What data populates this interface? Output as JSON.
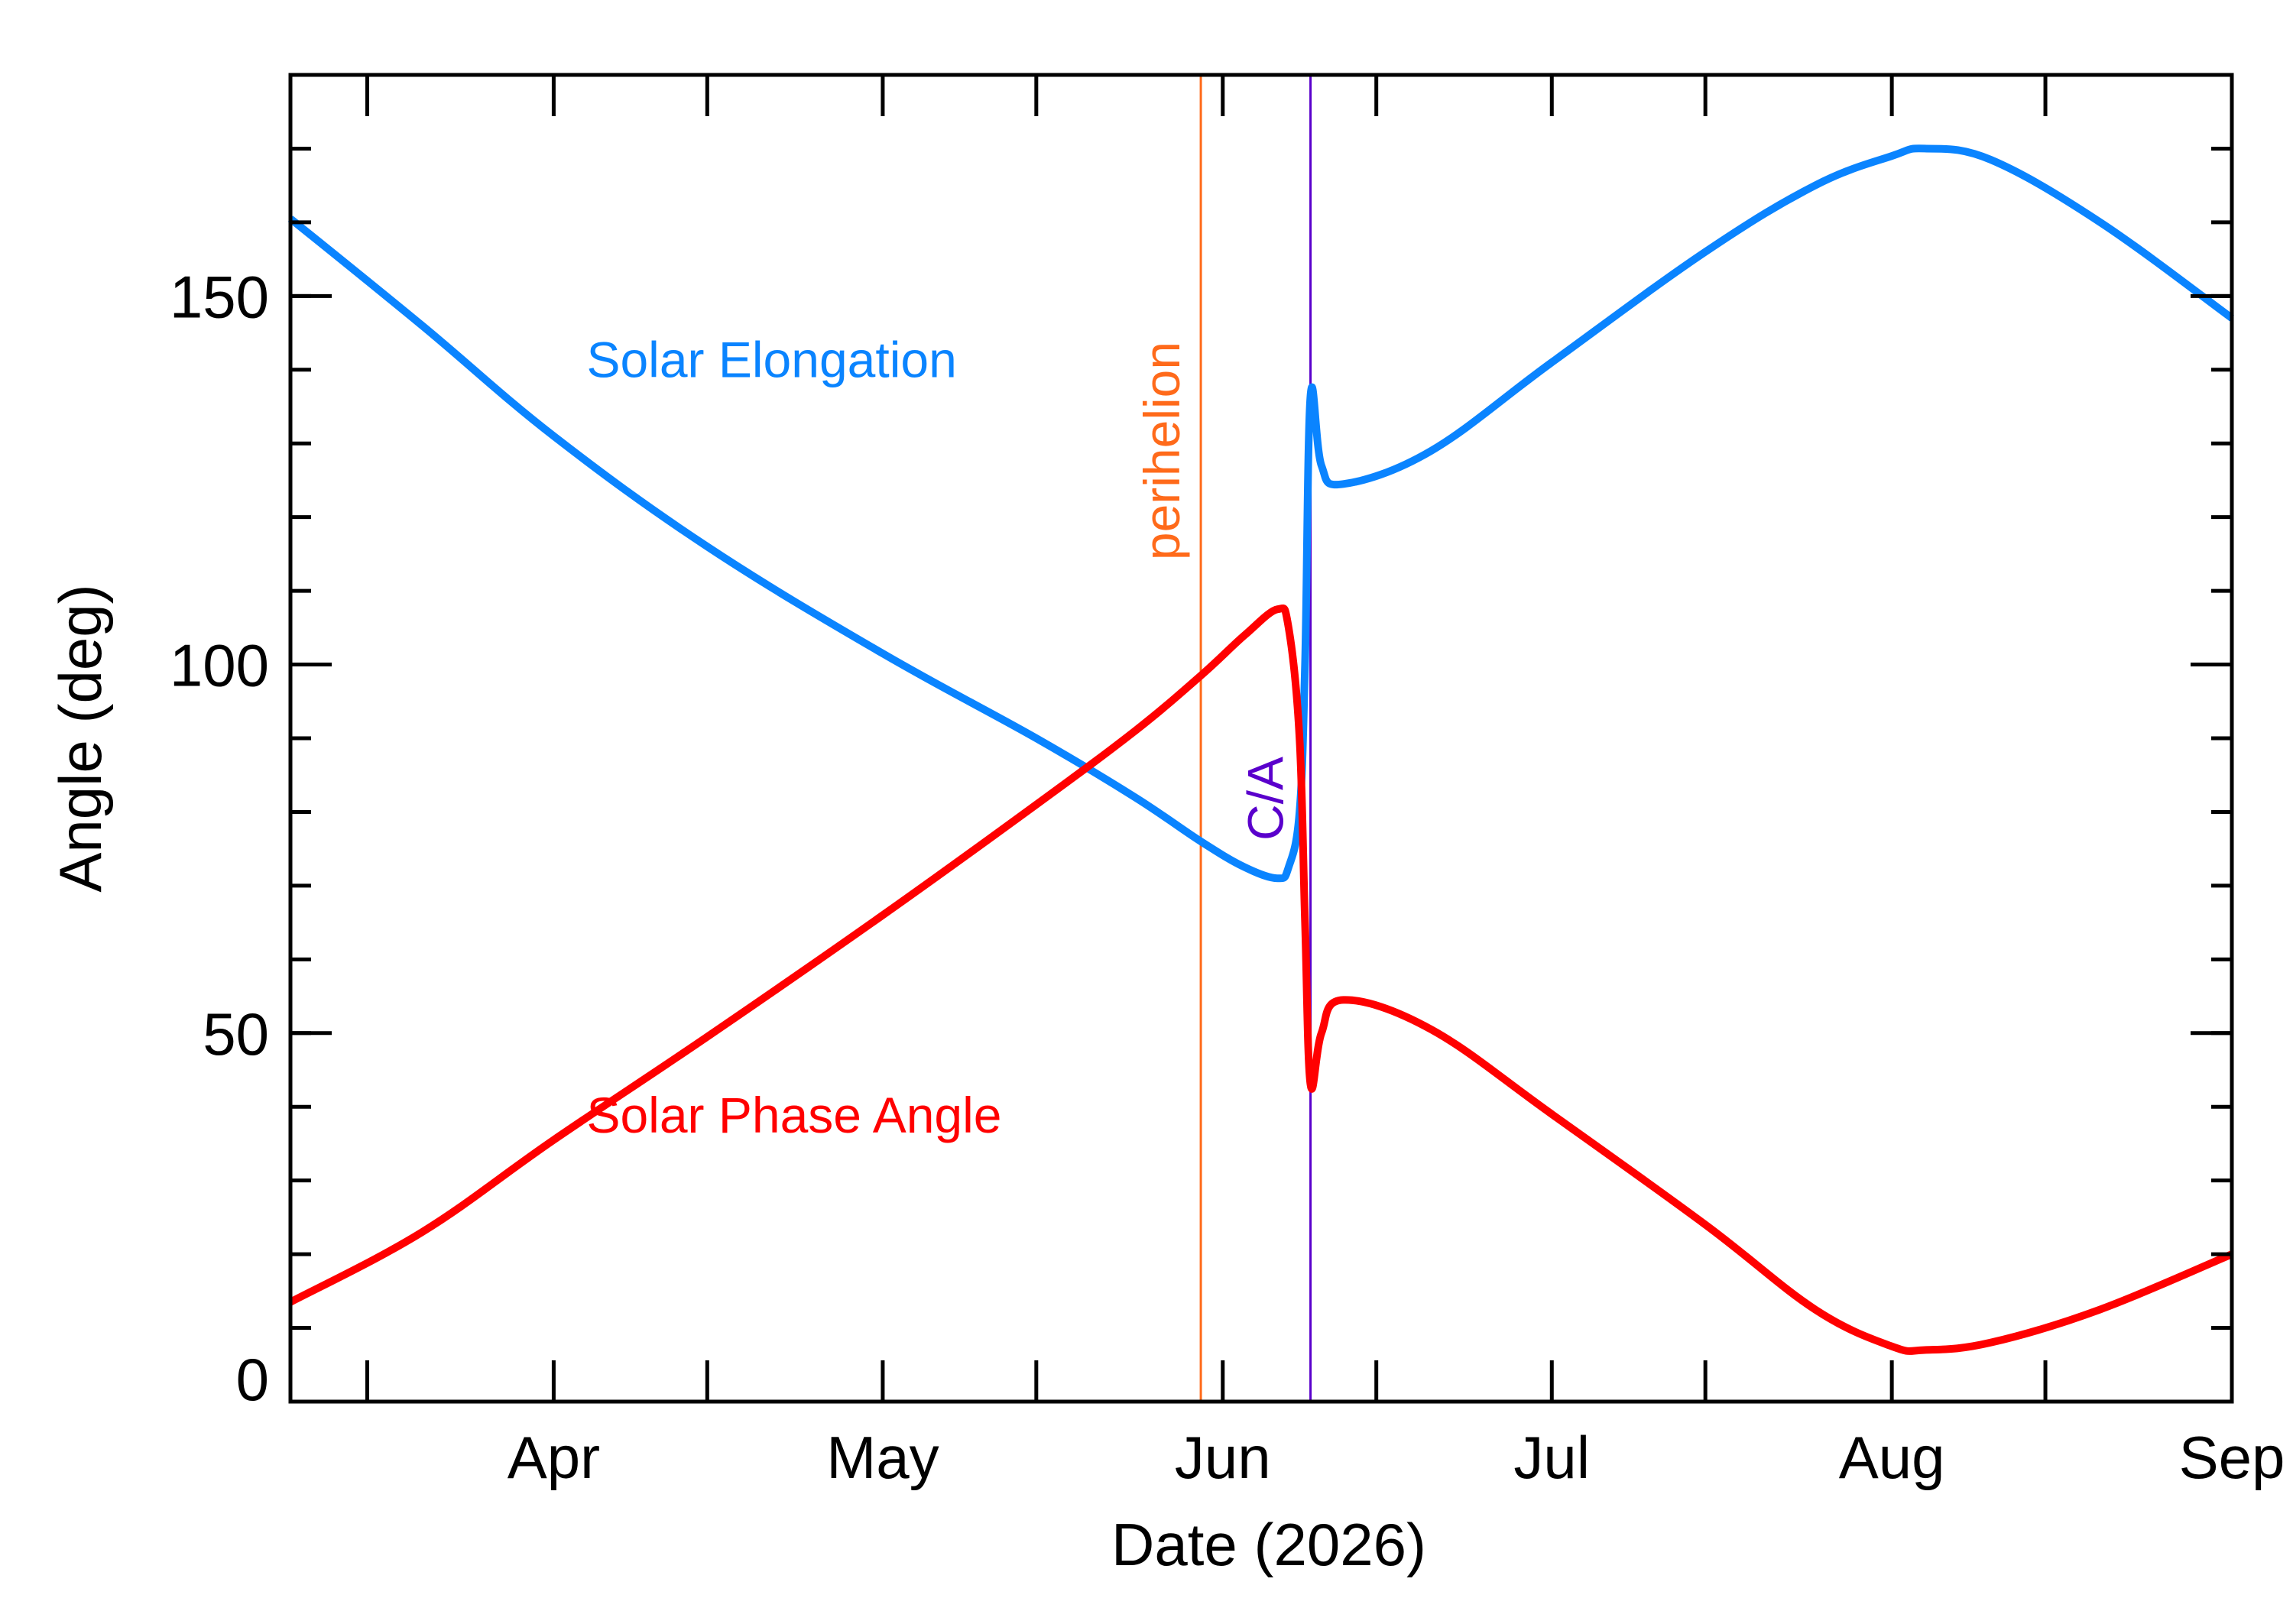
{
  "chart_data": {
    "type": "line",
    "title": "",
    "xlabel": "Date (2026)",
    "ylabel": "Angle (deg)",
    "xlim": [
      "2026-03-08",
      "2026-09-01"
    ],
    "ylim": [
      0,
      180
    ],
    "grid": false,
    "x_ticks": [
      {
        "date": "2026-03-15",
        "label": ""
      },
      {
        "date": "2026-04-01",
        "label": "Apr"
      },
      {
        "date": "2026-04-15",
        "label": ""
      },
      {
        "date": "2026-05-01",
        "label": "May"
      },
      {
        "date": "2026-05-15",
        "label": ""
      },
      {
        "date": "2026-06-01",
        "label": "Jun"
      },
      {
        "date": "2026-06-15",
        "label": ""
      },
      {
        "date": "2026-07-01",
        "label": "Jul"
      },
      {
        "date": "2026-07-15",
        "label": ""
      },
      {
        "date": "2026-08-01",
        "label": "Aug"
      },
      {
        "date": "2026-08-15",
        "label": ""
      },
      {
        "date": "2026-09-01",
        "label": "Sep"
      }
    ],
    "y_ticks": [
      {
        "value": 0,
        "label": "0"
      },
      {
        "value": 50,
        "label": "50"
      },
      {
        "value": 100,
        "label": "100"
      },
      {
        "value": 150,
        "label": "150"
      }
    ],
    "y_minor_step": 10,
    "series": [
      {
        "name": "Solar Elongation",
        "color": "#0a84ff",
        "points": [
          [
            "2026-03-08",
            160.5
          ],
          [
            "2026-03-20",
            146
          ],
          [
            "2026-04-01",
            131
          ],
          [
            "2026-04-15",
            116
          ],
          [
            "2026-05-01",
            101.5
          ],
          [
            "2026-05-15",
            90
          ],
          [
            "2026-05-24",
            82
          ],
          [
            "2026-05-30",
            76
          ],
          [
            "2026-06-03",
            72.5
          ],
          [
            "2026-06-06",
            71
          ],
          [
            "2026-06-07",
            72.5
          ],
          [
            "2026-06-08",
            80
          ],
          [
            "2026-06-08T12:00",
            100
          ],
          [
            "2026-06-09",
            136.5
          ],
          [
            "2026-06-10",
            127
          ],
          [
            "2026-06-12",
            124.5
          ],
          [
            "2026-06-20",
            129
          ],
          [
            "2026-07-01",
            141
          ],
          [
            "2026-07-15",
            156
          ],
          [
            "2026-07-25",
            165
          ],
          [
            "2026-08-01",
            169
          ],
          [
            "2026-08-04",
            170
          ],
          [
            "2026-08-10",
            168.5
          ],
          [
            "2026-08-20",
            160
          ],
          [
            "2026-09-01",
            147
          ]
        ]
      },
      {
        "name": "Solar Phase Angle",
        "color": "#ff0000",
        "points": [
          [
            "2026-03-08",
            13.5
          ],
          [
            "2026-03-20",
            23
          ],
          [
            "2026-04-01",
            35.5
          ],
          [
            "2026-04-15",
            49.5
          ],
          [
            "2026-05-01",
            66
          ],
          [
            "2026-05-15",
            81
          ],
          [
            "2026-05-24",
            91
          ],
          [
            "2026-05-30",
            98.5
          ],
          [
            "2026-06-03",
            104
          ],
          [
            "2026-06-06",
            107.5
          ],
          [
            "2026-06-07",
            105
          ],
          [
            "2026-06-08",
            90
          ],
          [
            "2026-06-08T12:00",
            65
          ],
          [
            "2026-06-09",
            43
          ],
          [
            "2026-06-10",
            50
          ],
          [
            "2026-06-12",
            54.5
          ],
          [
            "2026-06-20",
            50.5
          ],
          [
            "2026-07-01",
            39
          ],
          [
            "2026-07-15",
            24
          ],
          [
            "2026-07-25",
            12.5
          ],
          [
            "2026-08-01",
            7.5
          ],
          [
            "2026-08-04",
            7
          ],
          [
            "2026-08-10",
            8
          ],
          [
            "2026-08-20",
            12.5
          ],
          [
            "2026-09-01",
            20
          ]
        ]
      }
    ],
    "annotations": [
      {
        "text": "perihelion",
        "date": "2026-05-30",
        "color": "#ff6a1a"
      },
      {
        "text": "C/A",
        "date": "2026-06-09",
        "color": "#5a00cc"
      }
    ],
    "series_labels": [
      {
        "text": "Solar Elongation",
        "date": "2026-04-04",
        "value": 139,
        "color": "#0a84ff"
      },
      {
        "text": "Solar Phase Angle",
        "date": "2026-04-04",
        "value": 36.5,
        "color": "#ff0000"
      }
    ]
  }
}
